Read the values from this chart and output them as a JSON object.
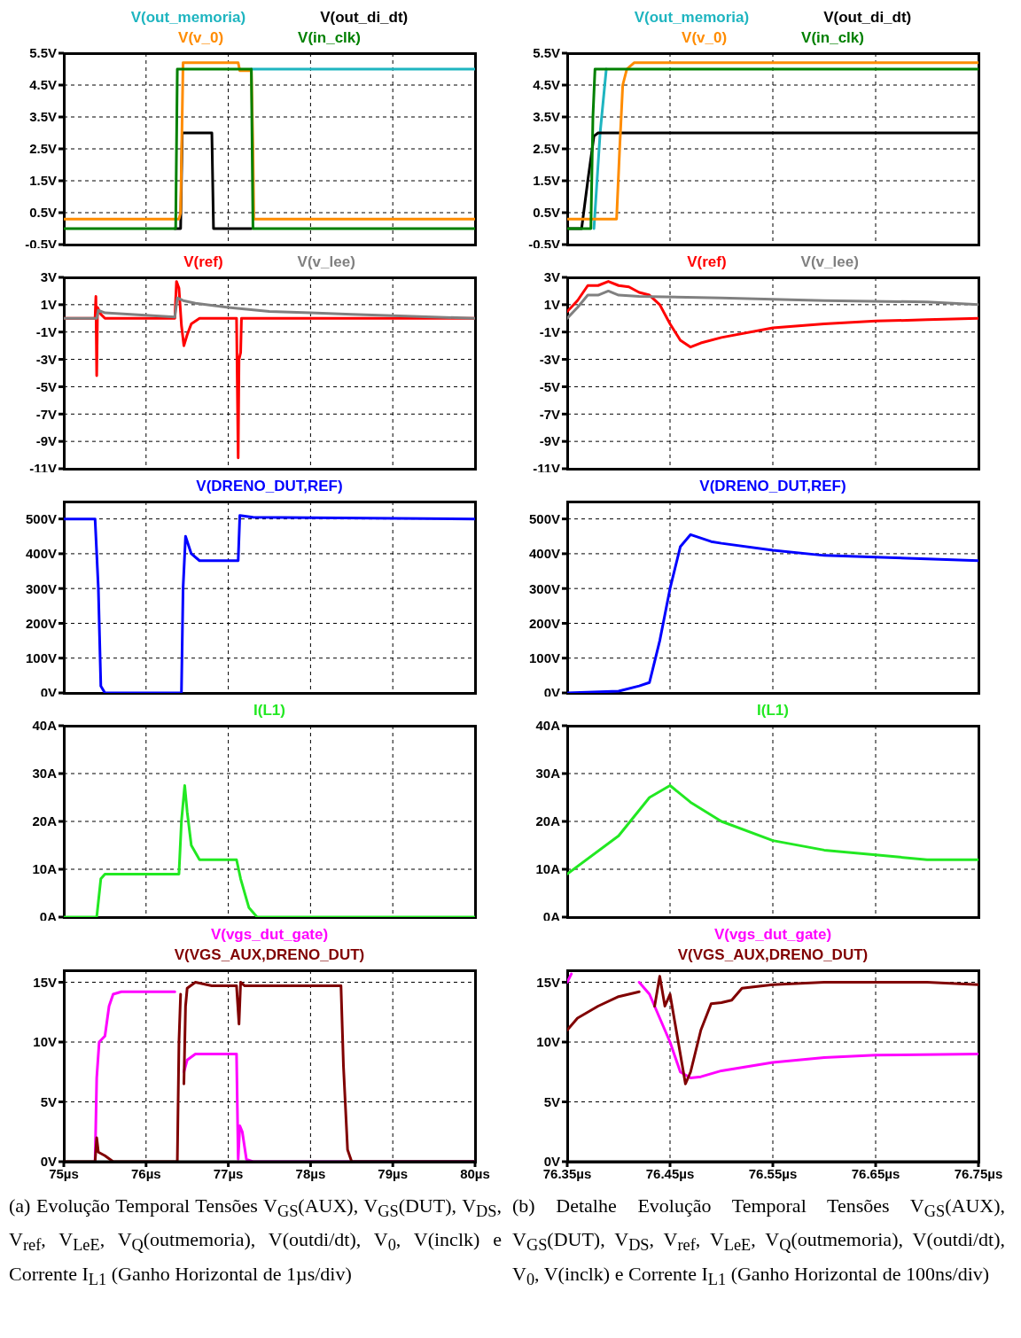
{
  "chart_data": [
    {
      "type": "line",
      "legend": "top",
      "grid": true,
      "tick_labels": "y",
      "xlim": [
        75,
        80
      ],
      "xticks": [
        75,
        76,
        77,
        78,
        79,
        80
      ],
      "ylim": [
        -0.5,
        5.5
      ],
      "yticks": [
        {
          "value": -0.5,
          "label": "-0.5V"
        },
        {
          "value": 0.5,
          "label": "0.5V"
        },
        {
          "value": 1.5,
          "label": "1.5V"
        },
        {
          "value": 2.5,
          "label": "2.5V"
        },
        {
          "value": 3.5,
          "label": "3.5V"
        },
        {
          "value": 4.5,
          "label": "4.5V"
        },
        {
          "value": 5.5,
          "label": "5.5V"
        }
      ],
      "series": [
        {
          "name": "V(out_memoria)",
          "color": "#1fb5c0",
          "x": [
            77.28,
            80
          ],
          "values": [
            5,
            5
          ]
        },
        {
          "name": "V(out_di_dt)",
          "color": "#000000",
          "x": [
            76.35,
            76.42,
            76.44,
            76.8,
            76.82,
            77.28
          ],
          "values": [
            0,
            0,
            3,
            3,
            0,
            0
          ]
        },
        {
          "name": "V(v_0)",
          "color": "#ff8c00",
          "x": [
            75,
            76.4,
            76.42,
            76.45,
            77.12,
            77.14,
            77.28,
            77.3,
            77.31,
            80
          ],
          "values": [
            0.3,
            0.3,
            0.5,
            5.2,
            5.2,
            4.95,
            4.95,
            2.5,
            0.3,
            0.3
          ]
        },
        {
          "name": "V(in_clk)",
          "color": "#008000",
          "x": [
            75,
            76.36,
            76.38,
            77.28,
            77.3,
            80
          ],
          "values": [
            0,
            0,
            5,
            5,
            0,
            0
          ]
        }
      ]
    },
    {
      "type": "line",
      "legend": "top",
      "grid": true,
      "tick_labels": "y",
      "xlim": [
        76.35,
        76.75
      ],
      "xticks": [
        76.35,
        76.45,
        76.55,
        76.65,
        76.75
      ],
      "ylim": [
        -0.5,
        5.5
      ],
      "yticks": [
        {
          "value": -0.5,
          "label": "-0.5V"
        },
        {
          "value": 0.5,
          "label": "0.5V"
        },
        {
          "value": 1.5,
          "label": "1.5V"
        },
        {
          "value": 2.5,
          "label": "2.5V"
        },
        {
          "value": 3.5,
          "label": "3.5V"
        },
        {
          "value": 4.5,
          "label": "4.5V"
        },
        {
          "value": 5.5,
          "label": "5.5V"
        }
      ],
      "series": [
        {
          "name": "V(out_memoria)",
          "color": "#1fb5c0",
          "x": [
            76.376,
            76.382,
            76.388
          ],
          "values": [
            0,
            3,
            5
          ]
        },
        {
          "name": "V(out_di_dt)",
          "color": "#000000",
          "x": [
            76.35,
            76.364,
            76.37,
            76.376,
            76.38,
            76.75
          ],
          "values": [
            0,
            0,
            1.5,
            2.9,
            3,
            3
          ]
        },
        {
          "name": "V(v_0)",
          "color": "#ff8c00",
          "x": [
            76.35,
            76.398,
            76.401,
            76.404,
            76.408,
            76.415,
            76.45,
            76.75
          ],
          "values": [
            0.3,
            0.3,
            2.5,
            4.5,
            5,
            5.2,
            5.2,
            5.2
          ]
        },
        {
          "name": "V(in_clk)",
          "color": "#008000",
          "x": [
            76.35,
            76.373,
            76.375,
            76.377,
            76.75
          ],
          "values": [
            0,
            0,
            3.5,
            5,
            5
          ]
        }
      ]
    },
    {
      "type": "line",
      "legend": "top",
      "grid": true,
      "tick_labels": "y",
      "xlim": [
        75,
        80
      ],
      "xticks": [
        75,
        76,
        77,
        78,
        79,
        80
      ],
      "ylim": [
        -11,
        3
      ],
      "yticks": [
        {
          "value": -11,
          "label": "-11V"
        },
        {
          "value": -9,
          "label": "-9V"
        },
        {
          "value": -7,
          "label": "-7V"
        },
        {
          "value": -5,
          "label": "-5V"
        },
        {
          "value": -3,
          "label": "-3V"
        },
        {
          "value": -1,
          "label": "-1V"
        },
        {
          "value": 1,
          "label": "1V"
        },
        {
          "value": 3,
          "label": "3V"
        }
      ],
      "series": [
        {
          "name": "V(ref)",
          "color": "#ff0000",
          "x": [
            75,
            75.38,
            75.39,
            75.4,
            75.41,
            75.45,
            75.5,
            76.35,
            76.37,
            76.4,
            76.43,
            76.46,
            76.5,
            76.55,
            76.65,
            77.1,
            77.12,
            77.13,
            77.15,
            77.16,
            80
          ],
          "values": [
            0,
            0,
            1.6,
            -4.2,
            0.8,
            0.3,
            0,
            0,
            2.7,
            2.2,
            -0.5,
            -2,
            -1.2,
            -0.4,
            0,
            0,
            -10.2,
            -3,
            -2.5,
            0,
            0
          ]
        },
        {
          "name": "V(v_lee)",
          "color": "#808080",
          "x": [
            75,
            75.4,
            75.42,
            75.5,
            76.35,
            76.38,
            76.45,
            76.6,
            77,
            77.5,
            78,
            78.5,
            79,
            80
          ],
          "values": [
            0,
            0,
            0.6,
            0.4,
            0.1,
            1.5,
            1.3,
            1.1,
            0.8,
            0.5,
            0.4,
            0.3,
            0.2,
            0
          ]
        }
      ]
    },
    {
      "type": "line",
      "legend": "top",
      "grid": true,
      "tick_labels": "y",
      "xlim": [
        76.35,
        76.75
      ],
      "xticks": [
        76.35,
        76.45,
        76.55,
        76.65,
        76.75
      ],
      "ylim": [
        -11,
        3
      ],
      "yticks": [
        {
          "value": -11,
          "label": "-11V"
        },
        {
          "value": -9,
          "label": "-9V"
        },
        {
          "value": -7,
          "label": "-7V"
        },
        {
          "value": -5,
          "label": "-5V"
        },
        {
          "value": -3,
          "label": "-3V"
        },
        {
          "value": -1,
          "label": "-1V"
        },
        {
          "value": 1,
          "label": "1V"
        },
        {
          "value": 3,
          "label": "3V"
        }
      ],
      "series": [
        {
          "name": "V(ref)",
          "color": "#ff0000",
          "x": [
            76.35,
            76.36,
            76.37,
            76.38,
            76.39,
            76.4,
            76.41,
            76.42,
            76.43,
            76.44,
            76.45,
            76.46,
            76.47,
            76.48,
            76.5,
            76.55,
            76.6,
            76.65,
            76.7,
            76.75
          ],
          "values": [
            0.5,
            1.3,
            2.4,
            2.4,
            2.7,
            2.4,
            2.3,
            1.9,
            1.7,
            1,
            -0.4,
            -1.6,
            -2.1,
            -1.8,
            -1.4,
            -0.7,
            -0.4,
            -0.2,
            -0.1,
            0
          ]
        },
        {
          "name": "V(v_lee)",
          "color": "#808080",
          "x": [
            76.35,
            76.36,
            76.37,
            76.38,
            76.39,
            76.4,
            76.42,
            76.5,
            76.6,
            76.7,
            76.75
          ],
          "values": [
            0,
            0.8,
            1.7,
            1.7,
            2,
            1.7,
            1.6,
            1.5,
            1.3,
            1.2,
            1
          ]
        }
      ]
    },
    {
      "type": "line",
      "legend": "top",
      "grid": true,
      "tick_labels": "y",
      "xlim": [
        75,
        80
      ],
      "xticks": [
        75,
        76,
        77,
        78,
        79,
        80
      ],
      "ylim": [
        0,
        550
      ],
      "yticks": [
        {
          "value": 0,
          "label": "0V"
        },
        {
          "value": 100,
          "label": "100V"
        },
        {
          "value": 200,
          "label": "200V"
        },
        {
          "value": 300,
          "label": "300V"
        },
        {
          "value": 400,
          "label": "400V"
        },
        {
          "value": 500,
          "label": "500V"
        }
      ],
      "series": [
        {
          "name": "V(DRENO_DUT,REF)",
          "color": "#0000ff",
          "x": [
            75,
            75.38,
            75.42,
            75.45,
            75.5,
            76.43,
            76.45,
            76.48,
            76.55,
            76.65,
            77.12,
            77.14,
            77.3,
            80
          ],
          "values": [
            500,
            500,
            300,
            20,
            0,
            0,
            300,
            450,
            400,
            380,
            380,
            510,
            505,
            500
          ]
        }
      ]
    },
    {
      "type": "line",
      "legend": "top",
      "grid": true,
      "tick_labels": "y",
      "xlim": [
        76.35,
        76.75
      ],
      "xticks": [
        76.35,
        76.45,
        76.55,
        76.65,
        76.75
      ],
      "ylim": [
        0,
        550
      ],
      "yticks": [
        {
          "value": 0,
          "label": "0V"
        },
        {
          "value": 100,
          "label": "100V"
        },
        {
          "value": 200,
          "label": "200V"
        },
        {
          "value": 300,
          "label": "300V"
        },
        {
          "value": 400,
          "label": "400V"
        },
        {
          "value": 500,
          "label": "500V"
        }
      ],
      "series": [
        {
          "name": "V(DRENO_DUT,REF)",
          "color": "#0000ff",
          "x": [
            76.35,
            76.4,
            76.42,
            76.43,
            76.44,
            76.45,
            76.46,
            76.47,
            76.49,
            76.5,
            76.55,
            76.6,
            76.65,
            76.7,
            76.75
          ],
          "values": [
            0,
            5,
            20,
            30,
            150,
            300,
            420,
            455,
            435,
            430,
            410,
            395,
            390,
            385,
            380
          ]
        }
      ]
    },
    {
      "type": "line",
      "legend": "top",
      "grid": true,
      "tick_labels": "y",
      "xlim": [
        75,
        80
      ],
      "xticks": [
        75,
        76,
        77,
        78,
        79,
        80
      ],
      "ylim": [
        0,
        40
      ],
      "yticks": [
        {
          "value": 0,
          "label": "0A"
        },
        {
          "value": 10,
          "label": "10A"
        },
        {
          "value": 20,
          "label": "20A"
        },
        {
          "value": 30,
          "label": "30A"
        },
        {
          "value": 40,
          "label": "40A"
        }
      ],
      "series": [
        {
          "name": "I(L1)",
          "color": "#22e822",
          "x": [
            75,
            75.4,
            75.45,
            75.5,
            76.4,
            76.43,
            76.47,
            76.5,
            76.55,
            76.65,
            77.1,
            77.15,
            77.25,
            77.35,
            80
          ],
          "values": [
            0,
            0,
            8,
            9,
            9,
            20,
            27.5,
            22,
            15,
            12,
            12,
            8,
            2,
            0,
            0
          ]
        }
      ]
    },
    {
      "type": "line",
      "legend": "top",
      "grid": true,
      "tick_labels": "y",
      "xlim": [
        76.35,
        76.75
      ],
      "xticks": [
        76.35,
        76.45,
        76.55,
        76.65,
        76.75
      ],
      "ylim": [
        0,
        40
      ],
      "yticks": [
        {
          "value": 0,
          "label": "0A"
        },
        {
          "value": 10,
          "label": "10A"
        },
        {
          "value": 20,
          "label": "20A"
        },
        {
          "value": 30,
          "label": "30A"
        },
        {
          "value": 40,
          "label": "40A"
        }
      ],
      "series": [
        {
          "name": "I(L1)",
          "color": "#22e822",
          "x": [
            76.35,
            76.4,
            76.43,
            76.45,
            76.47,
            76.5,
            76.55,
            76.6,
            76.65,
            76.7,
            76.75
          ],
          "values": [
            9,
            17,
            25,
            27.5,
            24,
            20,
            16,
            14,
            13,
            12,
            12
          ]
        }
      ]
    },
    {
      "type": "line",
      "legend": "top",
      "grid": true,
      "xlim": [
        75,
        80
      ],
      "xticks": [
        {
          "value": 75,
          "label": "75µs"
        },
        {
          "value": 76,
          "label": "76µs"
        },
        {
          "value": 77,
          "label": "77µs"
        },
        {
          "value": 78,
          "label": "78µs"
        },
        {
          "value": 79,
          "label": "79µs"
        },
        {
          "value": 80,
          "label": "80µs"
        }
      ],
      "ylim": [
        0,
        16
      ],
      "yticks": [
        {
          "value": 0,
          "label": "0V"
        },
        {
          "value": 5,
          "label": "5V"
        },
        {
          "value": 10,
          "label": "10V"
        },
        {
          "value": 15,
          "label": "15V"
        }
      ],
      "annotations": [
        "(a) Evolução Temporal Tensões V$_{GS}$(AUX), V$_{GS}$(DUT), V$_{DS}$, V$_{ref}$, V$_{LeE}$, V$_{Q}$(outmemoria), V(outdi/dt), V$_{0}$, V(inclk) e Corrente I$_{L1}$ (Ganho Horizontal de 1µs/div)"
      ],
      "series": [
        {
          "name": "V(vgs_dut_gate)",
          "color": "#ff00ff",
          "x": [
            75.38,
            75.4,
            75.43,
            75.5,
            75.55,
            75.6,
            75.7,
            76.35,
            76.38,
            76.41,
            76.44,
            76.46,
            76.5,
            76.6,
            77.1,
            77.12,
            77.14,
            77.17,
            77.22,
            77.3,
            80
          ],
          "values": [
            0,
            7,
            10,
            10.5,
            13,
            14,
            14.2,
            14.2,
            null,
            null,
            null,
            7.5,
            8.5,
            9,
            9,
            0.2,
            3,
            2.5,
            0.2,
            0,
            0
          ]
        },
        {
          "name": "V(VGS_AUX,DRENO_DUT)",
          "color": "#800000",
          "x": [
            75,
            75.38,
            75.4,
            75.42,
            75.5,
            75.6,
            76.38,
            76.4,
            76.42,
            76.44,
            76.46,
            76.48,
            76.5,
            76.6,
            76.8,
            77.1,
            77.13,
            77.15,
            77.2,
            78.37,
            78.4,
            78.45,
            78.5,
            80
          ],
          "values": [
            0,
            0,
            2,
            0.8,
            0.5,
            0,
            0,
            10,
            14,
            null,
            6.5,
            13,
            14.5,
            15,
            14.7,
            14.7,
            11.5,
            15,
            14.7,
            14.7,
            8,
            1,
            0,
            0
          ]
        }
      ]
    },
    {
      "type": "line",
      "legend": "top",
      "grid": true,
      "xlim": [
        76.35,
        76.75
      ],
      "xticks": [
        {
          "value": 76.35,
          "label": "76.35µs"
        },
        {
          "value": 76.45,
          "label": "76.45µs"
        },
        {
          "value": 76.55,
          "label": "76.55µs"
        },
        {
          "value": 76.65,
          "label": "76.65µs"
        },
        {
          "value": 76.75,
          "label": "76.75µs"
        }
      ],
      "ylim": [
        0,
        16
      ],
      "yticks": [
        {
          "value": 0,
          "label": "0V"
        },
        {
          "value": 5,
          "label": "5V"
        },
        {
          "value": 10,
          "label": "10V"
        },
        {
          "value": 15,
          "label": "15V"
        }
      ],
      "annotations": [
        "(b) Detalhe Evolução Temporal Tensões V$_{GS}$(AUX), V$_{GS}$(DUT), V$_{DS}$, V$_{ref}$, V$_{LeE}$, V$_{Q}$(outmemoria), V(outdi/dt), V$_{0}$, V(inclk) e Corrente I$_{L1}$ (Ganho Horizontal de 100ns/div)"
      ],
      "series": [
        {
          "name": "V(vgs_dut_gate)",
          "color": "#ff00ff",
          "x": [
            76.35,
            76.354,
            76.38,
            76.4,
            76.42,
            76.43,
            76.44,
            76.45,
            76.46,
            76.47,
            76.48,
            76.5,
            76.55,
            76.6,
            76.65,
            76.75
          ],
          "values": [
            15,
            15.7,
            null,
            null,
            15,
            14,
            12,
            10,
            7.5,
            7,
            7.1,
            7.6,
            8.3,
            8.7,
            8.9,
            9
          ]
        },
        {
          "name": "V(VGS_AUX,DRENO_DUT)",
          "color": "#800000",
          "x": [
            76.35,
            76.36,
            76.38,
            76.4,
            76.42,
            76.43,
            76.435,
            76.44,
            76.445,
            76.45,
            76.46,
            76.465,
            76.47,
            76.48,
            76.49,
            76.5,
            76.51,
            76.52,
            76.55,
            76.6,
            76.7,
            76.75
          ],
          "values": [
            11,
            12,
            13,
            13.8,
            14.2,
            null,
            13,
            15.5,
            13,
            14,
            9,
            6.5,
            7.5,
            11,
            13.2,
            13.3,
            13.5,
            14.5,
            14.8,
            15,
            15,
            14.8
          ]
        }
      ]
    }
  ]
}
